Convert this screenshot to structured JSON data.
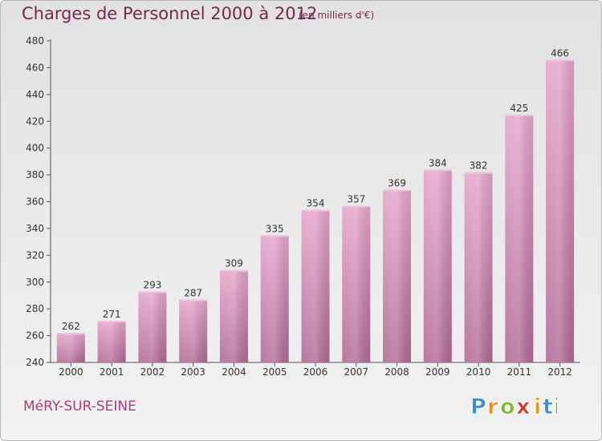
{
  "title": "Charges de Personnel 2000 à 2012",
  "subtitle": "(en milliers d'€)",
  "place": "MéRY-SUR-SEINE",
  "logo": {
    "letters": [
      "P",
      "r",
      "o",
      "x",
      "i",
      "t",
      "i"
    ],
    "colors": [
      "#3a8fd0",
      "#f08a1c",
      "#7cb82f",
      "#d6322e",
      "#e0a020",
      "#3a8fd0",
      "#7cb82f"
    ]
  },
  "chart_data": {
    "type": "bar",
    "categories": [
      "2000",
      "2001",
      "2002",
      "2003",
      "2004",
      "2005",
      "2006",
      "2007",
      "2008",
      "2009",
      "2010",
      "2011",
      "2012"
    ],
    "values": [
      262,
      271,
      293,
      287,
      309,
      335,
      354,
      357,
      369,
      384,
      382,
      425,
      466
    ],
    "ylim": [
      240,
      480
    ],
    "yticks": [
      240,
      260,
      280,
      300,
      320,
      340,
      360,
      380,
      400,
      420,
      440,
      460,
      480
    ],
    "grid": false,
    "bar_color": "#d88bb8",
    "bar_color_dark": "#b06090"
  }
}
